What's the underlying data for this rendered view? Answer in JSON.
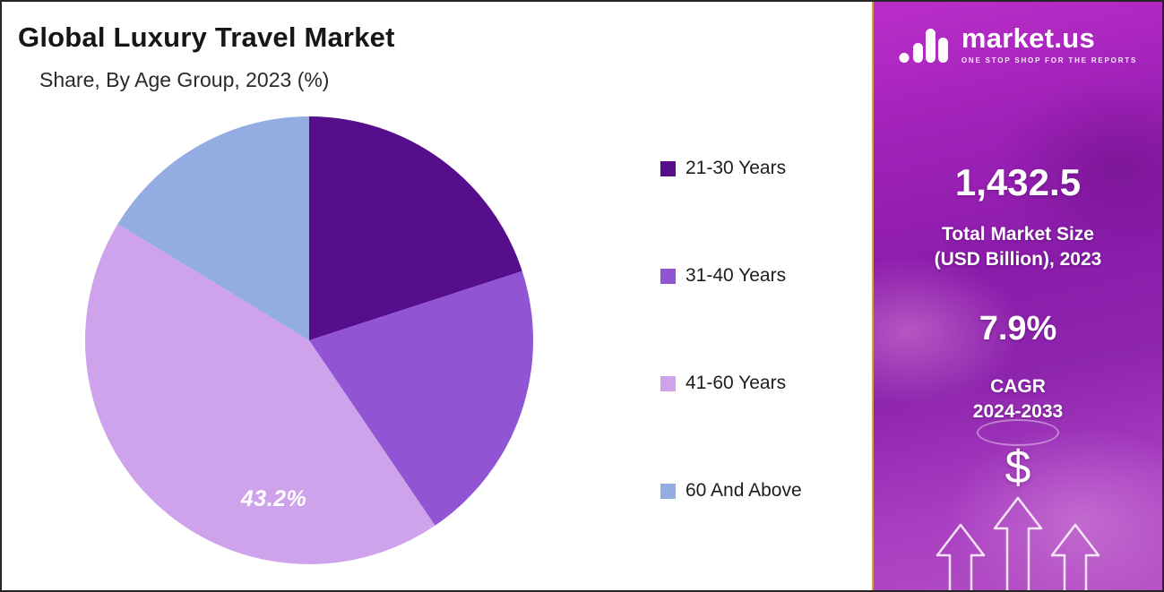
{
  "chart_data": {
    "type": "pie",
    "title": "Global Luxury Travel Market",
    "subtitle": "Share, By Age Group, 2023 (%)",
    "unit": "percent share",
    "legend_position": "right",
    "start_angle_deg": 0,
    "direction": "clockwise",
    "value_label_color": "#ffffff",
    "slices": [
      {
        "label": "21-30 Years",
        "value": 20.0,
        "color": "#560e8d",
        "show_label": false,
        "label_text": ""
      },
      {
        "label": "31-40 Years",
        "value": 20.5,
        "color": "#9155d4",
        "show_label": false,
        "label_text": ""
      },
      {
        "label": "41-60 Years",
        "value": 43.2,
        "color": "#cfa3eb",
        "show_label": true,
        "label_text": "43.2%",
        "label_angle_frac": 0.3,
        "label_radius_frac": 0.73
      },
      {
        "label": "60 And Above",
        "value": 16.3,
        "color": "#93ade3",
        "show_label": false,
        "label_text": ""
      }
    ]
  },
  "sidebar": {
    "brand": {
      "name": "market.us",
      "tagline": "ONE STOP SHOP FOR THE REPORTS"
    },
    "market_size": {
      "value": "1,432.5",
      "label_line1": "Total Market Size",
      "label_line2": "(USD Billion), 2023"
    },
    "cagr": {
      "value": "7.9%",
      "label_line1": "CAGR",
      "label_line2": "2024-2033"
    },
    "dollar_symbol": "$",
    "colors": {
      "border": "#df9c40"
    }
  }
}
